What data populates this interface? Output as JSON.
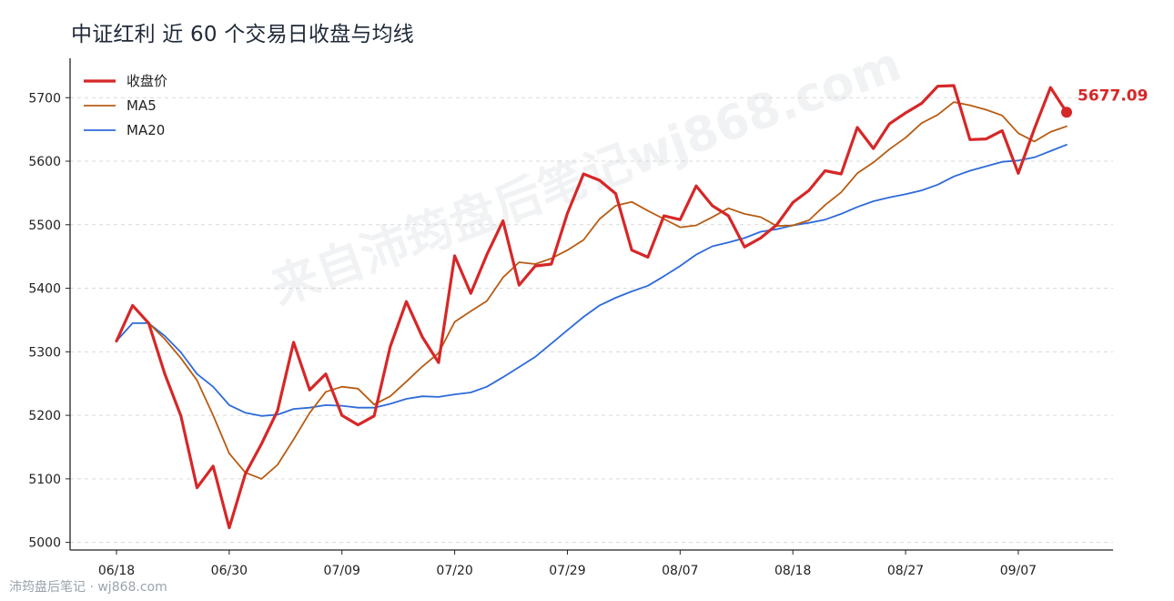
{
  "chart_data": {
    "type": "line",
    "title": "中证红利 近 60 个交易日收盘与均线",
    "xlabel": "",
    "ylabel": "",
    "ylim": [
      4988,
      5762
    ],
    "yticks": [
      5000,
      5100,
      5200,
      5300,
      5400,
      5500,
      5600,
      5700
    ],
    "ytick_labels": [
      "5000",
      "5100",
      "5200",
      "5300",
      "5400",
      "5500",
      "5600",
      "5700"
    ],
    "xtick_labels": [
      "06/18",
      "06/30",
      "07/09",
      "07/20",
      "07/29",
      "08/07",
      "08/18",
      "08/27",
      "09/07"
    ],
    "xtick_index": [
      0,
      7,
      14,
      21,
      28,
      35,
      42,
      49,
      56
    ],
    "grid": "horizontal-dashed",
    "legend_position": "top-left",
    "last_value_label": "5677.09",
    "series": [
      {
        "name": "收盘价",
        "color": "#d62728",
        "values": [
          5317,
          5373,
          5345,
          5265,
          5199,
          5086,
          5120,
          5023,
          5108,
          5155,
          5207,
          5315,
          5240,
          5265,
          5200,
          5185,
          5199,
          5308,
          5379,
          5323,
          5283,
          5451,
          5392,
          5453,
          5506,
          5405,
          5435,
          5438,
          5518,
          5580,
          5570,
          5549,
          5460,
          5449,
          5514,
          5508,
          5561,
          5530,
          5514,
          5465,
          5479,
          5500,
          5535,
          5554,
          5585,
          5580,
          5653,
          5620,
          5659,
          5676,
          5691,
          5718,
          5719,
          5634,
          5635,
          5648,
          5581,
          5651,
          5716,
          5677.09
        ]
      },
      {
        "name": "MA5",
        "color": "#b85c12",
        "values": [
          5317,
          5373,
          5345,
          5320,
          5290,
          5255,
          5200,
          5140,
          5110,
          5100,
          5122,
          5162,
          5204,
          5237,
          5245,
          5242,
          5217,
          5230,
          5253,
          5277,
          5298,
          5347,
          5364,
          5380,
          5417,
          5441,
          5438,
          5447,
          5460,
          5476,
          5509,
          5530,
          5536,
          5522,
          5509,
          5496,
          5499,
          5512,
          5526,
          5517,
          5512,
          5498,
          5499,
          5507,
          5531,
          5551,
          5581,
          5598,
          5619,
          5637,
          5660,
          5673,
          5693,
          5688,
          5681,
          5672,
          5644,
          5631,
          5646,
          5655
        ]
      },
      {
        "name": "MA20",
        "color": "#2e6ad9",
        "values": [
          5317,
          5345,
          5345,
          5325,
          5299,
          5265,
          5245,
          5216,
          5204,
          5199,
          5201,
          5210,
          5212,
          5216,
          5215,
          5212,
          5212,
          5218,
          5226,
          5230,
          5229,
          5233,
          5236,
          5245,
          5260,
          5276,
          5292,
          5313,
          5334,
          5355,
          5373,
          5385,
          5395,
          5404,
          5419,
          5435,
          5453,
          5466,
          5472,
          5479,
          5489,
          5493,
          5499,
          5503,
          5508,
          5517,
          5528,
          5537,
          5543,
          5548,
          5554,
          5563,
          5576,
          5585,
          5592,
          5599,
          5601,
          5606,
          5616,
          5626
        ]
      }
    ]
  },
  "footer": "沛筠盘后笔记 · wj868.com",
  "watermark": "来自沛筠盘后笔记wj868.com"
}
